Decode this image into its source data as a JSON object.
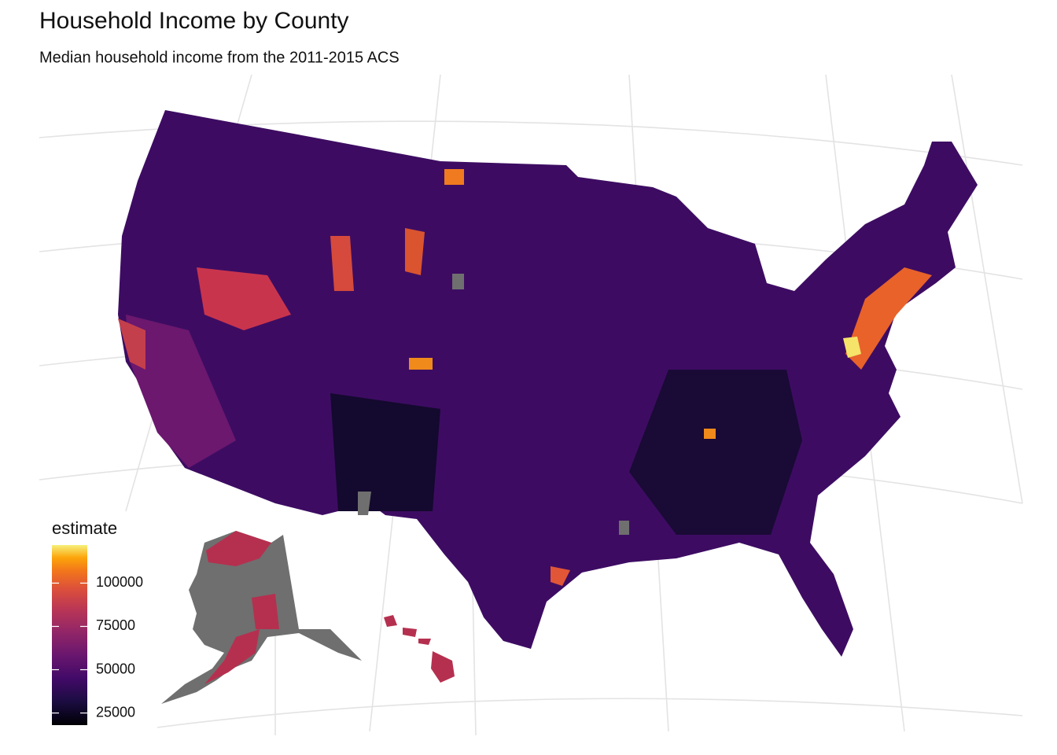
{
  "chart_data": {
    "type": "choropleth",
    "title": "Household Income by County",
    "subtitle": "Median household income from the 2011-2015 ACS",
    "legend_title": "estimate",
    "colormap": "inferno",
    "colorbar_lim": [
      18000,
      122000
    ],
    "colorbar_ticks": [
      25000,
      50000,
      75000,
      100000
    ]
  }
}
